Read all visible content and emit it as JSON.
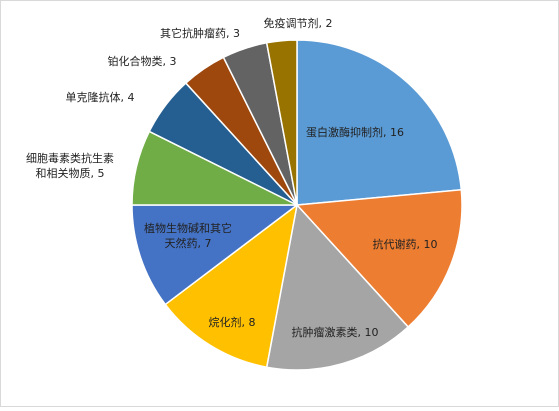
{
  "chart_data": {
    "type": "pie",
    "categories": [
      "蛋白激酶抑制剂",
      "抗代谢药",
      "抗肿瘤激素类",
      "烷化剂",
      "植物生物碱和其它天然药",
      "细胞毒素类抗生素和相关物质",
      "单克隆抗体",
      "铂化合物类",
      "其它抗肿瘤药",
      "免疫调节剂"
    ],
    "values": [
      16,
      10,
      10,
      8,
      7,
      5,
      4,
      3,
      3,
      2
    ],
    "colors": [
      "#5b9bd5",
      "#ed7d31",
      "#a5a5a5",
      "#ffc000",
      "#4472c4",
      "#70ad47",
      "#255e91",
      "#9e480e",
      "#636363",
      "#997300"
    ]
  }
}
